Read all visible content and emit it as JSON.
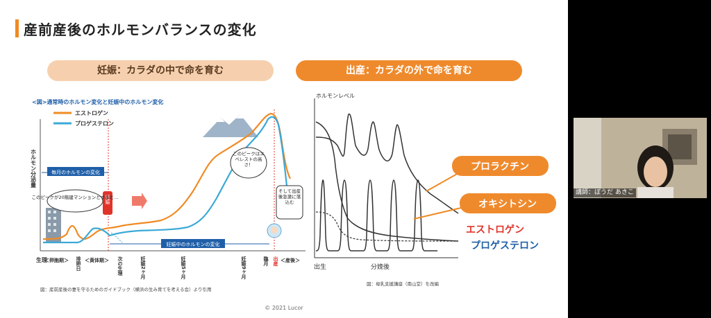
{
  "title": "産前産後のホルモンバランスの変化",
  "pill_left": "妊娠：カラダの中で命を育む",
  "pill_right": "出産：カラダの外で命を育む",
  "copyright": "© 2021 Lucor",
  "colors": {
    "accent": "#f08a24",
    "estrogen": "#f08a24",
    "progesterone": "#3aa9d6",
    "blue_label": "#1f5fa8",
    "red_label": "#e0342a"
  },
  "chart_data": [
    {
      "type": "line",
      "title": "<図>通常時のホルモン変化と妊娠中のホルモン変化",
      "ylabel": "ホルモン分泌量",
      "legend": [
        "エストロゲン",
        "プロゲステロン"
      ],
      "legend_position": "top-left",
      "x_ticks": [
        "生理",
        "＜卵胞期＞",
        "排卵日",
        "＜黄体期＞",
        "次の生理",
        "妊娠2ヶ月",
        "妊娠5ヶ月",
        "妊娠9ヶ月",
        "臨月",
        "出産",
        "＜産後＞"
      ],
      "series": [
        {
          "name": "エストロゲン",
          "trend": "low with a bump before ovulation, rising steeply through pregnancy to a peak at delivery, then dropping sharply"
        },
        {
          "name": "プロゲステロン",
          "trend": "low, slight rise in luteal phase, rising through pregnancy to a peak near delivery, then dropping sharply"
        }
      ],
      "annotations": {
        "monthly_band": "毎月のホルモンの変化",
        "pregnancy_band": "妊娠中のホルモンの変化",
        "ovulation_peak": "このピークが20階建マンションとすると…",
        "everest_peak": "このピークはエベレストの高さ！",
        "pregnancy_mark": "妊娠",
        "postpartum": "そして出産後急激に落込む"
      },
      "source": "図：産前産後の妻を守るためのガイドブック（横浜の生み育てを考える会）より引用"
    },
    {
      "type": "line",
      "ylabel": "ホルモンレベル",
      "x_ticks": [
        "出生",
        "分娩後"
      ],
      "series": [
        {
          "name": "プロラクチン",
          "trend": "high with repeated spikes after delivery, gradually decreasing"
        },
        {
          "name": "オキシトシン",
          "trend": "repeated spikes from baseline after delivery"
        },
        {
          "name": "エストロゲン",
          "trend": "high before delivery, falling steeply afterwards"
        },
        {
          "name": "プロゲステロン",
          "trend": "moderate before delivery, falling to a low level afterwards"
        }
      ],
      "source": "図：母乳支援講座（南山堂）を改編"
    }
  ],
  "video": {
    "name_tag": "講師：ぼうだ あきこ"
  }
}
